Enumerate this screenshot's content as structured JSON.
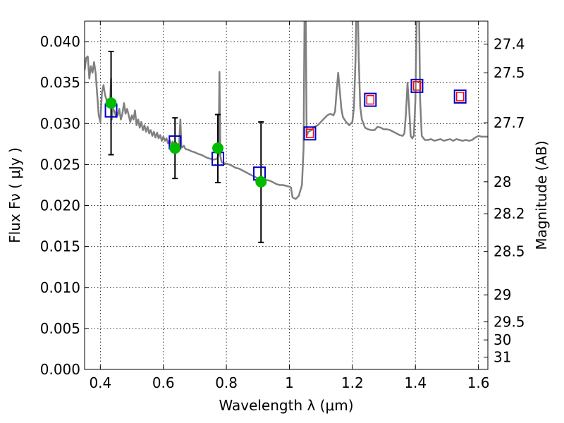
{
  "chart_data": {
    "type": "line",
    "xlabel": "Wavelength  λ (μm)",
    "ylabel": "Flux  Fν  ( μJy )",
    "ylabel_right": "Magnitude (AB)",
    "xlim": [
      0.35,
      1.63
    ],
    "ylim": [
      0.0,
      0.0425
    ],
    "grid": true,
    "x_ticks": [
      0.4,
      0.6,
      0.8,
      1.0,
      1.2,
      1.4,
      1.6
    ],
    "x_tick_labels": [
      "0.4",
      "0.6",
      "0.8",
      "1",
      "1.2",
      "1.4",
      "1.6"
    ],
    "y_ticks": [
      0.0,
      0.005,
      0.01,
      0.015,
      0.02,
      0.025,
      0.03,
      0.035,
      0.04
    ],
    "y_tick_labels": [
      "0.000",
      "0.005",
      "0.010",
      "0.015",
      "0.020",
      "0.025",
      "0.030",
      "0.035",
      "0.040"
    ],
    "right_ticks": [
      {
        "label": "27.4",
        "flux": 0.0397
      },
      {
        "label": "27.5",
        "flux": 0.0362
      },
      {
        "label": "27.7",
        "flux": 0.0301
      },
      {
        "label": "28",
        "flux": 0.0229
      },
      {
        "label": "28.2",
        "flux": 0.019
      },
      {
        "label": "28.5",
        "flux": 0.0144
      },
      {
        "label": "29",
        "flux": 0.0091
      },
      {
        "label": "29.5",
        "flux": 0.0058
      },
      {
        "label": "30",
        "flux": 0.0036
      },
      {
        "label": "31",
        "flux": 0.0015
      }
    ],
    "series": [
      {
        "style": "line",
        "color": "#808080",
        "points": [
          [
            0.35,
            0.0365
          ],
          [
            0.355,
            0.038
          ],
          [
            0.36,
            0.0382
          ],
          [
            0.365,
            0.0355
          ],
          [
            0.37,
            0.037
          ],
          [
            0.375,
            0.0362
          ],
          [
            0.38,
            0.0375
          ],
          [
            0.385,
            0.0362
          ],
          [
            0.39,
            0.0335
          ],
          [
            0.395,
            0.031
          ],
          [
            0.4,
            0.0302
          ],
          [
            0.405,
            0.0338
          ],
          [
            0.41,
            0.0347
          ],
          [
            0.415,
            0.0335
          ],
          [
            0.42,
            0.0328
          ],
          [
            0.425,
            0.0325
          ],
          [
            0.43,
            0.032
          ],
          [
            0.434,
            0.0355
          ],
          [
            0.436,
            0.0305
          ],
          [
            0.44,
            0.0318
          ],
          [
            0.445,
            0.0315
          ],
          [
            0.45,
            0.0308
          ],
          [
            0.455,
            0.031
          ],
          [
            0.46,
            0.0318
          ],
          [
            0.465,
            0.0305
          ],
          [
            0.47,
            0.0312
          ],
          [
            0.475,
            0.0325
          ],
          [
            0.48,
            0.0312
          ],
          [
            0.485,
            0.0318
          ],
          [
            0.49,
            0.031
          ],
          [
            0.495,
            0.0302
          ],
          [
            0.5,
            0.031
          ],
          [
            0.505,
            0.0305
          ],
          [
            0.51,
            0.0316
          ],
          [
            0.515,
            0.0298
          ],
          [
            0.52,
            0.0305
          ],
          [
            0.525,
            0.0295
          ],
          [
            0.53,
            0.0302
          ],
          [
            0.535,
            0.0292
          ],
          [
            0.54,
            0.0298
          ],
          [
            0.545,
            0.029
          ],
          [
            0.55,
            0.0296
          ],
          [
            0.555,
            0.0288
          ],
          [
            0.56,
            0.0292
          ],
          [
            0.565,
            0.0285
          ],
          [
            0.57,
            0.029
          ],
          [
            0.575,
            0.0283
          ],
          [
            0.58,
            0.0289
          ],
          [
            0.585,
            0.0282
          ],
          [
            0.59,
            0.0286
          ],
          [
            0.595,
            0.0279
          ],
          [
            0.6,
            0.0284
          ],
          [
            0.605,
            0.0279
          ],
          [
            0.61,
            0.0282
          ],
          [
            0.615,
            0.0276
          ],
          [
            0.62,
            0.028
          ],
          [
            0.625,
            0.0275
          ],
          [
            0.63,
            0.0278
          ],
          [
            0.635,
            0.0273
          ],
          [
            0.64,
            0.0277
          ],
          [
            0.645,
            0.0272
          ],
          [
            0.65,
            0.0275
          ],
          [
            0.654,
            0.0305
          ],
          [
            0.657,
            0.0272
          ],
          [
            0.66,
            0.0271
          ],
          [
            0.665,
            0.0273
          ],
          [
            0.67,
            0.0269
          ],
          [
            0.68,
            0.0268
          ],
          [
            0.69,
            0.0266
          ],
          [
            0.7,
            0.0265
          ],
          [
            0.71,
            0.0263
          ],
          [
            0.72,
            0.0262
          ],
          [
            0.73,
            0.026
          ],
          [
            0.74,
            0.0258
          ],
          [
            0.75,
            0.0257
          ],
          [
            0.76,
            0.0256
          ],
          [
            0.77,
            0.0257
          ],
          [
            0.775,
            0.0262
          ],
          [
            0.778,
            0.0363
          ],
          [
            0.781,
            0.026
          ],
          [
            0.785,
            0.0253
          ],
          [
            0.79,
            0.0252
          ],
          [
            0.8,
            0.0251
          ],
          [
            0.81,
            0.025
          ],
          [
            0.82,
            0.0248
          ],
          [
            0.83,
            0.0246
          ],
          [
            0.84,
            0.0245
          ],
          [
            0.85,
            0.0243
          ],
          [
            0.86,
            0.0241
          ],
          [
            0.87,
            0.0239
          ],
          [
            0.88,
            0.0237
          ],
          [
            0.89,
            0.0235
          ],
          [
            0.9,
            0.0233
          ],
          [
            0.91,
            0.0232
          ],
          [
            0.92,
            0.0231
          ],
          [
            0.93,
            0.0231
          ],
          [
            0.94,
            0.023
          ],
          [
            0.95,
            0.0228
          ],
          [
            0.96,
            0.0226
          ],
          [
            0.97,
            0.0225
          ],
          [
            0.98,
            0.0225
          ],
          [
            0.99,
            0.0224
          ],
          [
            1.0,
            0.0223
          ],
          [
            1.005,
            0.0222
          ],
          [
            1.01,
            0.021
          ],
          [
            1.02,
            0.0208
          ],
          [
            1.03,
            0.0212
          ],
          [
            1.04,
            0.0225
          ],
          [
            1.045,
            0.027
          ],
          [
            1.048,
            0.0425
          ],
          [
            1.052,
            0.0425
          ],
          [
            1.055,
            0.0285
          ],
          [
            1.06,
            0.029
          ],
          [
            1.07,
            0.0292
          ],
          [
            1.08,
            0.0296
          ],
          [
            1.09,
            0.0298
          ],
          [
            1.1,
            0.0302
          ],
          [
            1.11,
            0.0306
          ],
          [
            1.12,
            0.031
          ],
          [
            1.13,
            0.0312
          ],
          [
            1.14,
            0.031
          ],
          [
            1.145,
            0.0315
          ],
          [
            1.15,
            0.034
          ],
          [
            1.155,
            0.0362
          ],
          [
            1.16,
            0.034
          ],
          [
            1.165,
            0.0318
          ],
          [
            1.17,
            0.0308
          ],
          [
            1.18,
            0.0302
          ],
          [
            1.19,
            0.0298
          ],
          [
            1.2,
            0.0302
          ],
          [
            1.205,
            0.032
          ],
          [
            1.21,
            0.0378
          ],
          [
            1.212,
            0.0425
          ],
          [
            1.218,
            0.0425
          ],
          [
            1.22,
            0.038
          ],
          [
            1.225,
            0.032
          ],
          [
            1.23,
            0.0305
          ],
          [
            1.24,
            0.0295
          ],
          [
            1.25,
            0.0293
          ],
          [
            1.26,
            0.0292
          ],
          [
            1.27,
            0.0292
          ],
          [
            1.28,
            0.0296
          ],
          [
            1.29,
            0.0295
          ],
          [
            1.3,
            0.0293
          ],
          [
            1.31,
            0.0293
          ],
          [
            1.32,
            0.0292
          ],
          [
            1.33,
            0.029
          ],
          [
            1.34,
            0.0288
          ],
          [
            1.35,
            0.0286
          ],
          [
            1.36,
            0.0285
          ],
          [
            1.365,
            0.0288
          ],
          [
            1.37,
            0.0312
          ],
          [
            1.375,
            0.035
          ],
          [
            1.38,
            0.032
          ],
          [
            1.385,
            0.0285
          ],
          [
            1.39,
            0.0282
          ],
          [
            1.395,
            0.0285
          ],
          [
            1.4,
            0.0328
          ],
          [
            1.404,
            0.0425
          ],
          [
            1.412,
            0.0425
          ],
          [
            1.415,
            0.033
          ],
          [
            1.42,
            0.0285
          ],
          [
            1.43,
            0.028
          ],
          [
            1.44,
            0.028
          ],
          [
            1.45,
            0.0281
          ],
          [
            1.46,
            0.0279
          ],
          [
            1.47,
            0.028
          ],
          [
            1.48,
            0.0281
          ],
          [
            1.49,
            0.0279
          ],
          [
            1.5,
            0.028
          ],
          [
            1.51,
            0.0281
          ],
          [
            1.52,
            0.0279
          ],
          [
            1.53,
            0.0281
          ],
          [
            1.54,
            0.028
          ],
          [
            1.55,
            0.0279
          ],
          [
            1.56,
            0.028
          ],
          [
            1.57,
            0.0279
          ],
          [
            1.58,
            0.028
          ],
          [
            1.59,
            0.0283
          ],
          [
            1.6,
            0.0285
          ],
          [
            1.61,
            0.0284
          ],
          [
            1.62,
            0.0284
          ],
          [
            1.63,
            0.0284
          ]
        ]
      },
      {
        "style": "errorbar",
        "color": "#000000",
        "points": [
          {
            "x": 0.434,
            "y": 0.0325,
            "ylow": 0.0262,
            "yhigh": 0.0388
          },
          {
            "x": 0.637,
            "y": 0.027,
            "ylow": 0.0233,
            "yhigh": 0.0307
          },
          {
            "x": 0.773,
            "y": 0.027,
            "ylow": 0.0228,
            "yhigh": 0.0311
          },
          {
            "x": 0.91,
            "y": 0.0229,
            "ylow": 0.0155,
            "yhigh": 0.0302
          }
        ]
      },
      {
        "style": "square-blue",
        "color": "#0000cc",
        "points": [
          [
            0.434,
            0.0316
          ],
          [
            0.637,
            0.0277
          ],
          [
            0.773,
            0.0257
          ],
          [
            0.905,
            0.0239
          ],
          [
            1.065,
            0.0288
          ],
          [
            1.257,
            0.0329
          ],
          [
            1.405,
            0.0346
          ],
          [
            1.542,
            0.0333
          ]
        ]
      },
      {
        "style": "square-red",
        "color": "#ff0000",
        "points": [
          [
            1.065,
            0.0288
          ],
          [
            1.257,
            0.0329
          ],
          [
            1.405,
            0.0346
          ],
          [
            1.542,
            0.0333
          ]
        ]
      },
      {
        "style": "circle",
        "color": "#00bb00",
        "points": [
          [
            0.434,
            0.0325
          ],
          [
            0.637,
            0.027
          ],
          [
            0.773,
            0.027
          ],
          [
            0.91,
            0.0229
          ]
        ]
      }
    ]
  }
}
